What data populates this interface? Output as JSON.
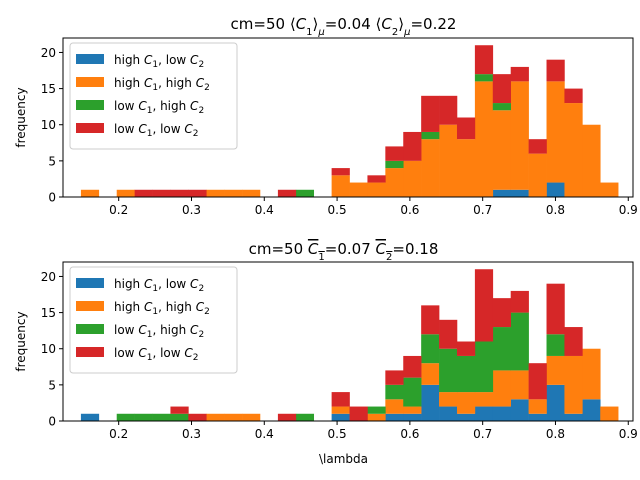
{
  "chart_data": [
    {
      "type": "bar",
      "subtype": "stacked-histogram",
      "title": "cm=50 ⟨C₁⟩μ=0.04 ⟨C₂⟩μ=0.22",
      "title_parts": {
        "prefix": "cm=50 ",
        "m1": "C",
        "m1sub": "1",
        "m1val": "=0.04 ",
        "m2": "C",
        "m2sub": "2",
        "m2val": "=0.22",
        "outer_sub": "μ"
      },
      "xlabel": "",
      "ylabel": "frequency",
      "xlim": [
        0.1235,
        0.9065
      ],
      "ylim": [
        0,
        22
      ],
      "xticks": [
        0.2,
        0.3,
        0.4,
        0.5,
        0.6,
        0.7,
        0.8,
        0.9
      ],
      "yticks": [
        0,
        5,
        10,
        15,
        20
      ],
      "bin_width": 0.0246,
      "bins_start": [
        0.1481,
        0.1727,
        0.1973,
        0.2219,
        0.2465,
        0.2711,
        0.2957,
        0.3203,
        0.3449,
        0.3695,
        0.3941,
        0.4187,
        0.4433,
        0.4679,
        0.4925,
        0.5171,
        0.5417,
        0.5663,
        0.5909,
        0.6155,
        0.6401,
        0.6647,
        0.6893,
        0.7139,
        0.7385,
        0.7631,
        0.7877,
        0.8123,
        0.8369,
        0.8615
      ],
      "legend_position": "upper-left",
      "series": [
        {
          "name": "high C1, low C2",
          "label_main": "high ",
          "label_c1": "C",
          "label_s1": "1",
          "label_mid": ", low ",
          "label_c2": "C",
          "label_s2": "2",
          "color": "#1f77b4",
          "values": [
            0,
            0,
            0,
            0,
            0,
            0,
            0,
            0,
            0,
            0,
            0,
            0,
            0,
            0,
            0,
            0,
            0,
            0,
            0,
            0,
            0,
            0,
            0,
            1,
            1,
            0,
            2,
            0,
            0,
            0
          ]
        },
        {
          "name": "high C1, high C2",
          "label_main": "high ",
          "label_c1": "C",
          "label_s1": "1",
          "label_mid": ", high ",
          "label_c2": "C",
          "label_s2": "2",
          "color": "#ff7f0e",
          "values": [
            1,
            0,
            1,
            0,
            0,
            0,
            0,
            1,
            1,
            1,
            0,
            0,
            0,
            0,
            3,
            2,
            2,
            4,
            5,
            8,
            10,
            8,
            16,
            11,
            15,
            6,
            14,
            13,
            10,
            2
          ]
        },
        {
          "name": "low C1, high C2",
          "label_main": "low ",
          "label_c1": "C",
          "label_s1": "1",
          "label_mid": ", high ",
          "label_c2": "C",
          "label_s2": "2",
          "color": "#2ca02c",
          "values": [
            0,
            0,
            0,
            0,
            0,
            0,
            0,
            0,
            0,
            0,
            0,
            0,
            1,
            0,
            0,
            0,
            0,
            1,
            0,
            1,
            0,
            0,
            1,
            1,
            0,
            0,
            0,
            0,
            0,
            0
          ]
        },
        {
          "name": "low C1, low C2",
          "label_main": "low ",
          "label_c1": "C",
          "label_s1": "1",
          "label_mid": ", low ",
          "label_c2": "C",
          "label_s2": "2",
          "color": "#d62728",
          "values": [
            0,
            0,
            0,
            1,
            1,
            1,
            1,
            0,
            0,
            0,
            0,
            1,
            0,
            0,
            1,
            0,
            1,
            2,
            4,
            5,
            4,
            3,
            4,
            4,
            2,
            2,
            3,
            2,
            0,
            0
          ]
        }
      ]
    },
    {
      "type": "bar",
      "subtype": "stacked-histogram",
      "title": "cm=50 C̄₁=0.07 C̄₂=0.18",
      "title_parts": {
        "prefix": "cm=50 ",
        "m1": "C",
        "m1sub": "1",
        "m1val": "=0.07 ",
        "m2": "C",
        "m2sub": "2",
        "m2val": "=0.18"
      },
      "xlabel": "\\lambda",
      "ylabel": "frequency",
      "xlim": [
        0.1235,
        0.9065
      ],
      "ylim": [
        0,
        22
      ],
      "xticks": [
        0.2,
        0.3,
        0.4,
        0.5,
        0.6,
        0.7,
        0.8,
        0.9
      ],
      "yticks": [
        0,
        5,
        10,
        15,
        20
      ],
      "bin_width": 0.0246,
      "bins_start": [
        0.1481,
        0.1727,
        0.1973,
        0.2219,
        0.2465,
        0.2711,
        0.2957,
        0.3203,
        0.3449,
        0.3695,
        0.3941,
        0.4187,
        0.4433,
        0.4679,
        0.4925,
        0.5171,
        0.5417,
        0.5663,
        0.5909,
        0.6155,
        0.6401,
        0.6647,
        0.6893,
        0.7139,
        0.7385,
        0.7631,
        0.7877,
        0.8123,
        0.8369,
        0.8615
      ],
      "legend_position": "upper-left",
      "series": [
        {
          "name": "high C1, low C2",
          "label_main": "high ",
          "label_c1": "C",
          "label_s1": "1",
          "label_mid": ", low ",
          "label_c2": "C",
          "label_s2": "2",
          "color": "#1f77b4",
          "values": [
            1,
            0,
            0,
            0,
            0,
            0,
            0,
            0,
            0,
            0,
            0,
            0,
            0,
            0,
            1,
            0,
            0,
            1,
            1,
            5,
            2,
            1,
            2,
            2,
            3,
            1,
            5,
            1,
            3,
            0
          ]
        },
        {
          "name": "high C1, high C2",
          "label_main": "high ",
          "label_c1": "C",
          "label_s1": "1",
          "label_mid": ", high ",
          "label_c2": "C",
          "label_s2": "2",
          "color": "#ff7f0e",
          "values": [
            0,
            0,
            0,
            0,
            0,
            0,
            0,
            1,
            1,
            1,
            0,
            0,
            0,
            0,
            1,
            0,
            1,
            2,
            1,
            3,
            2,
            3,
            2,
            5,
            4,
            2,
            4,
            8,
            7,
            2
          ]
        },
        {
          "name": "low C1, high C2",
          "label_main": "low ",
          "label_c1": "C",
          "label_s1": "1",
          "label_mid": ", high ",
          "label_c2": "C",
          "label_s2": "2",
          "color": "#2ca02c",
          "values": [
            0,
            0,
            1,
            1,
            1,
            1,
            0,
            0,
            0,
            0,
            0,
            0,
            1,
            0,
            0,
            0,
            1,
            2,
            4,
            4,
            6,
            5,
            7,
            6,
            8,
            0,
            3,
            0,
            0,
            0
          ]
        },
        {
          "name": "low C1, low C2",
          "label_main": "low ",
          "label_c1": "C",
          "label_s1": "1",
          "label_mid": ", low ",
          "label_c2": "C",
          "label_s2": "2",
          "color": "#d62728",
          "values": [
            0,
            0,
            0,
            0,
            0,
            1,
            1,
            0,
            0,
            0,
            0,
            1,
            0,
            0,
            2,
            2,
            0,
            2,
            3,
            4,
            4,
            2,
            10,
            4,
            3,
            5,
            7,
            4,
            0,
            0
          ]
        }
      ]
    }
  ]
}
